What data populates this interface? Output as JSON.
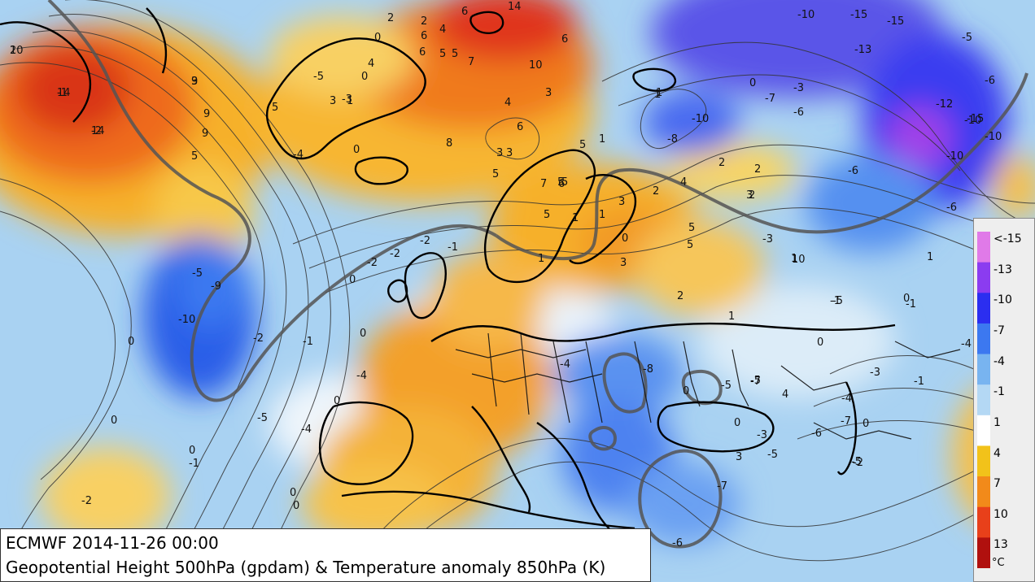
{
  "caption": {
    "line1": "ECMWF 2014-11-26 00:00",
    "line2": "Geopotential Height 500hPa (gpdam) & Temperature anomaly 850hPa (K)"
  },
  "legend": {
    "ticks": [
      "<-15",
      "-13",
      "-10",
      "-7",
      "-4",
      "-1",
      "1",
      "4",
      "7",
      "10",
      "13"
    ],
    "unit": "°C",
    "colors": {
      "<-15": "#e07ae8",
      "-13": "#8b3cf0",
      "-10": "#2b2ef0",
      "-7": "#3c78f0",
      "-4": "#78b4f0",
      "-1": "#b4d8f4",
      "1": "#ffffff",
      "4": "#f2c21a",
      "7": "#f28a1a",
      "10": "#e8401a",
      "13": "#b0100e"
    }
  },
  "anomaly_labels": [
    "10",
    "14",
    "14",
    "9",
    "9",
    "9",
    "5",
    "2",
    "6",
    "4",
    "6",
    "2",
    "14",
    "0",
    "4",
    "0",
    "5",
    "6",
    "5",
    "5",
    "7",
    "10",
    "3",
    "1",
    "4",
    "6",
    "3",
    "6",
    "3",
    "3",
    "5",
    "8",
    "5",
    "5",
    "1",
    "3",
    "-3",
    "1",
    "-5",
    "-4",
    "0",
    "5",
    "7",
    "6",
    "5",
    "1",
    "1",
    "1",
    "1",
    "0",
    "3",
    "2",
    "3",
    "-10",
    "-8",
    "-10",
    "-15",
    "-13",
    "-5",
    "-15",
    "-10",
    "-3",
    "0",
    "-7",
    "-6",
    "-6",
    "-3",
    "2",
    "2",
    "2",
    "4",
    "1",
    "5",
    "5",
    "2",
    "1",
    "-5",
    "-9",
    "-10",
    "-2",
    "-1",
    "-2",
    "0",
    "-2",
    "-2",
    "-1",
    "0",
    "-4",
    "-5",
    "-8",
    "0",
    "-5",
    "-7",
    "-1",
    "-2",
    "-5",
    "-6",
    "-3",
    "0",
    "-4",
    "3",
    "4",
    "0",
    "-4",
    "0",
    "0",
    "0",
    "-1",
    "0",
    "0",
    "0",
    "-5",
    "2",
    "0",
    "3",
    "-4",
    "-3",
    "-1",
    "-7",
    "-6",
    "-12",
    "-15",
    "-10",
    "-10",
    "-6",
    "10",
    "1",
    "0",
    "-1",
    "-6",
    "-5",
    "-7",
    "-5",
    "-4",
    "-2",
    "2",
    "-1",
    "-2",
    "3"
  ]
}
